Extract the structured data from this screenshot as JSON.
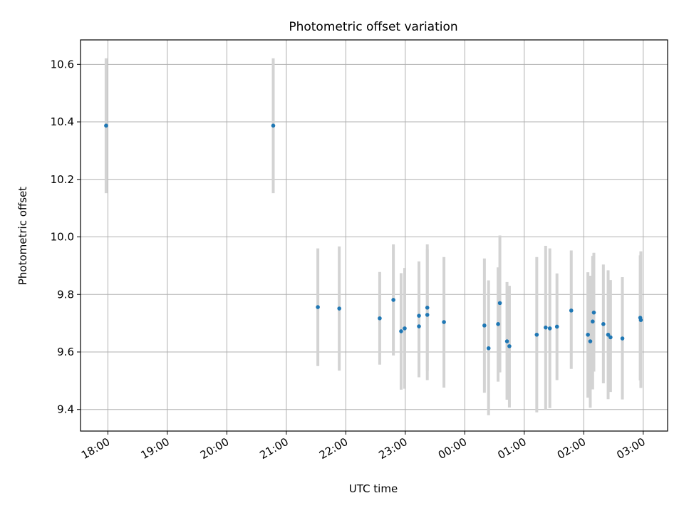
{
  "chart_data": {
    "type": "scatter",
    "title": "Photometric offset variation",
    "xlabel": "UTC time",
    "ylabel": "Photometric offset",
    "x_unit": "hours",
    "x_tick_values": [
      18,
      19,
      20,
      21,
      22,
      23,
      24,
      25,
      26,
      27
    ],
    "x_tick_labels": [
      "18:00",
      "19:00",
      "20:00",
      "21:00",
      "22:00",
      "23:00",
      "00:00",
      "01:00",
      "02:00",
      "03:00"
    ],
    "y_ticks": [
      9.4,
      9.6,
      9.8,
      10.0,
      10.2,
      10.4,
      10.6
    ],
    "y_tick_labels": [
      "9.4",
      "9.6",
      "9.8",
      "10.0",
      "10.2",
      "10.4",
      "10.6"
    ],
    "xlim": [
      17.54,
      27.41
    ],
    "ylim": [
      9.325,
      10.685
    ],
    "grid": true,
    "point_color": "#1f77b4",
    "errorbar_color": "#d3d3d3",
    "points": [
      {
        "x": 17.97,
        "y": 10.387,
        "lo": 10.152,
        "hi": 10.621
      },
      {
        "x": 20.78,
        "y": 10.387,
        "lo": 10.152,
        "hi": 10.621
      },
      {
        "x": 21.53,
        "y": 9.756,
        "lo": 9.551,
        "hi": 9.96
      },
      {
        "x": 21.89,
        "y": 9.751,
        "lo": 9.535,
        "hi": 9.967
      },
      {
        "x": 22.57,
        "y": 9.717,
        "lo": 9.556,
        "hi": 9.878
      },
      {
        "x": 22.8,
        "y": 9.781,
        "lo": 9.588,
        "hi": 9.974
      },
      {
        "x": 22.93,
        "y": 9.672,
        "lo": 9.469,
        "hi": 9.874
      },
      {
        "x": 22.99,
        "y": 9.682,
        "lo": 9.472,
        "hi": 9.892
      },
      {
        "x": 23.23,
        "y": 9.689,
        "lo": 9.537,
        "hi": 9.915
      },
      {
        "x": 23.23,
        "y": 9.726,
        "lo": 9.512,
        "hi": 9.867
      },
      {
        "x": 23.37,
        "y": 9.754,
        "lo": 9.535,
        "hi": 9.974
      },
      {
        "x": 23.37,
        "y": 9.729,
        "lo": 9.502,
        "hi": 9.957
      },
      {
        "x": 23.65,
        "y": 9.704,
        "lo": 9.476,
        "hi": 9.93
      },
      {
        "x": 24.33,
        "y": 9.692,
        "lo": 9.458,
        "hi": 9.925
      },
      {
        "x": 24.4,
        "y": 9.613,
        "lo": 9.38,
        "hi": 9.849
      },
      {
        "x": 24.56,
        "y": 9.697,
        "lo": 9.497,
        "hi": 9.894
      },
      {
        "x": 24.59,
        "y": 9.77,
        "lo": 9.529,
        "hi": 10.005
      },
      {
        "x": 24.71,
        "y": 9.637,
        "lo": 9.434,
        "hi": 9.843
      },
      {
        "x": 24.75,
        "y": 9.62,
        "lo": 9.407,
        "hi": 9.83
      },
      {
        "x": 25.21,
        "y": 9.66,
        "lo": 9.39,
        "hi": 9.93
      },
      {
        "x": 25.36,
        "y": 9.685,
        "lo": 9.4,
        "hi": 9.969
      },
      {
        "x": 25.43,
        "y": 9.682,
        "lo": 9.405,
        "hi": 9.96
      },
      {
        "x": 25.55,
        "y": 9.688,
        "lo": 9.502,
        "hi": 9.873
      },
      {
        "x": 25.79,
        "y": 9.744,
        "lo": 9.541,
        "hi": 9.953
      },
      {
        "x": 26.07,
        "y": 9.66,
        "lo": 9.441,
        "hi": 9.877
      },
      {
        "x": 26.11,
        "y": 9.637,
        "lo": 9.406,
        "hi": 9.865
      },
      {
        "x": 26.15,
        "y": 9.706,
        "lo": 9.47,
        "hi": 9.934
      },
      {
        "x": 26.17,
        "y": 9.737,
        "lo": 9.532,
        "hi": 9.945
      },
      {
        "x": 26.33,
        "y": 9.697,
        "lo": 9.491,
        "hi": 9.904
      },
      {
        "x": 26.41,
        "y": 9.66,
        "lo": 9.436,
        "hi": 9.884
      },
      {
        "x": 26.45,
        "y": 9.651,
        "lo": 9.461,
        "hi": 9.85
      },
      {
        "x": 26.65,
        "y": 9.647,
        "lo": 9.435,
        "hi": 9.86
      },
      {
        "x": 26.95,
        "y": 9.719,
        "lo": 9.501,
        "hi": 9.936
      },
      {
        "x": 26.96,
        "y": 9.711,
        "lo": 9.475,
        "hi": 9.95
      }
    ]
  }
}
